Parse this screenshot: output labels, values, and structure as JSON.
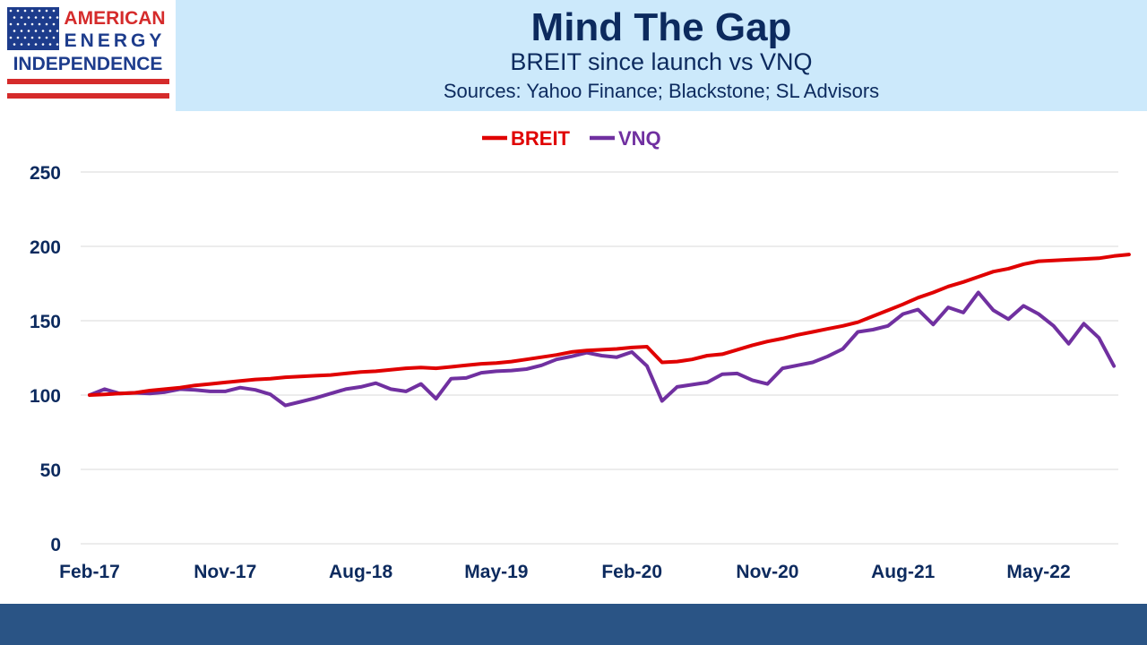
{
  "logo": {
    "line1": "AMERICAN",
    "line2": "ENERGY",
    "line3": "INDEPENDENCE",
    "colors": {
      "blue": "#1d3c8c",
      "red": "#d52b2b"
    }
  },
  "header": {
    "title": "Mind The Gap",
    "subtitle": "BREIT since launch vs VNQ",
    "sources": "Sources: Yahoo Finance; Blackstone; SL Advisors"
  },
  "colors": {
    "breit": "#e00000",
    "vnq": "#7030a0",
    "axis_text": "#0c2a5e",
    "grid": "#d9d9d9",
    "header_bg": "#cce9fb",
    "footer_bg": "#2a5485"
  },
  "chart_data": {
    "type": "line",
    "title": "",
    "xlabel": "",
    "ylabel": "",
    "ylim": [
      0,
      250
    ],
    "yticks": [
      0,
      50,
      100,
      150,
      200,
      250
    ],
    "grid": true,
    "legend_position": "top-center",
    "x_start": "Feb-17",
    "x_tick_labels": [
      "Feb-17",
      "Nov-17",
      "Aug-18",
      "May-19",
      "Feb-20",
      "Nov-20",
      "Aug-21",
      "May-22"
    ],
    "x_tick_indices": [
      0,
      9,
      18,
      27,
      36,
      45,
      54,
      63
    ],
    "series": [
      {
        "name": "BREIT",
        "color": "#e00000",
        "values": [
          100,
          100.5,
          101,
          101.5,
          103,
          104,
          105,
          106.5,
          107.5,
          108.5,
          109.5,
          110.5,
          111,
          112,
          112.5,
          113,
          113.5,
          114.5,
          115.5,
          116,
          117,
          118,
          118.5,
          118,
          119,
          120,
          121,
          121.5,
          122.5,
          124,
          125.5,
          127,
          129,
          130,
          130.5,
          131,
          132,
          132.5,
          122,
          122.5,
          124,
          126.5,
          127.5,
          130.5,
          133.5,
          136,
          138,
          140.5,
          142.5,
          144.5,
          146.5,
          149,
          153,
          157,
          161,
          165.5,
          169,
          173,
          176,
          179.5,
          183,
          185,
          188,
          190,
          190.5,
          191,
          191.5,
          192,
          193.5,
          194.5
        ]
      },
      {
        "name": "VNQ",
        "color": "#7030a0",
        "values": [
          100,
          104,
          101,
          101.5,
          101,
          102,
          104,
          103.5,
          102.5,
          102.5,
          105,
          103.5,
          100.5,
          93,
          95.5,
          98,
          101,
          104,
          105.5,
          108,
          104,
          102.5,
          107.5,
          97.5,
          111,
          111.5,
          115,
          116,
          116.5,
          117.5,
          120,
          124,
          126,
          128.5,
          126.5,
          125.5,
          129,
          119.5,
          96,
          105.5,
          107,
          108.5,
          114,
          114.5,
          110,
          107.5,
          118,
          120,
          122,
          126,
          131,
          142.5,
          144,
          146.5,
          154.5,
          157.5,
          147.5,
          159,
          155.5,
          169,
          157,
          151,
          160,
          154.5,
          146.5,
          134.5,
          148,
          138.5,
          119.5
        ]
      }
    ]
  }
}
